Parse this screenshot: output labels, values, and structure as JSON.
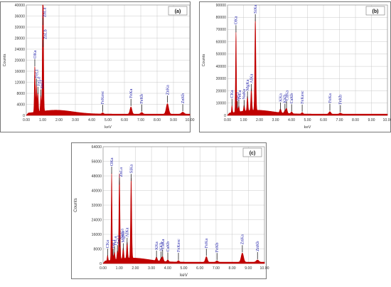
{
  "figure": {
    "colors": {
      "spectrum": "#c00000",
      "label_text": "#1c1ca8",
      "grid": "#c8c8c8",
      "frame": "#555555",
      "background": "#ffffff"
    }
  },
  "chart_data": [
    {
      "type": "area",
      "panel_label": "(a)",
      "xlabel": "keV",
      "ylabel": "Counts",
      "xlim": [
        0,
        10
      ],
      "ylim": [
        0,
        40000
      ],
      "x_ticks": [
        "0.00",
        "1.00",
        "2.00",
        "3.00",
        "4.00",
        "5.00",
        "6.00",
        "7.00",
        "8.00",
        "9.00",
        "10.00"
      ],
      "y_ticks": [
        "0",
        "4000",
        "8000",
        "12000",
        "16000",
        "20000",
        "24000",
        "28000",
        "32000",
        "36000",
        "40000"
      ],
      "grid": true,
      "peaks": [
        {
          "label": "FeLl",
          "x": 0.62,
          "y": 10000
        },
        {
          "label": "FeLa",
          "x": 0.71,
          "y": 7000
        },
        {
          "label": "OKa",
          "x": 0.52,
          "y": 17000
        },
        {
          "label": "ZnLl",
          "x": 0.89,
          "y": 6000
        },
        {
          "label": "ZnLa",
          "x": 1.01,
          "y": 32000
        },
        {
          "label": "ZnLb",
          "x": 1.03,
          "y": 24000
        },
        {
          "label": "FeKesc",
          "x": 4.67,
          "y": 450
        },
        {
          "label": "FeKa",
          "x": 6.4,
          "y": 2600
        },
        {
          "label": "FeKb",
          "x": 7.06,
          "y": 600
        },
        {
          "label": "ZnKa",
          "x": 8.63,
          "y": 3800
        },
        {
          "label": "ZnKb",
          "x": 9.57,
          "y": 700
        }
      ]
    },
    {
      "type": "area",
      "panel_label": "(b)",
      "xlabel": "keV",
      "ylabel": "Counts",
      "xlim": [
        0,
        10
      ],
      "ylim": [
        0,
        90000
      ],
      "x_ticks": [
        "0.00",
        "1.00",
        "2.00",
        "3.00",
        "4.00",
        "5.00",
        "6.00",
        "7.00",
        "8.00",
        "9.00",
        "10.00"
      ],
      "y_ticks": [
        "0",
        "10000",
        "20000",
        "30000",
        "40000",
        "50000",
        "60000",
        "70000",
        "80000",
        "90000"
      ],
      "grid": true,
      "peaks": [
        {
          "label": "CKa",
          "x": 0.28,
          "y": 6000
        },
        {
          "label": "OKa",
          "x": 0.53,
          "y": 66000
        },
        {
          "label": "FeLl",
          "x": 0.62,
          "y": 4000
        },
        {
          "label": "FeLa",
          "x": 0.71,
          "y": 5000
        },
        {
          "label": "NaKa",
          "x": 1.04,
          "y": 5000
        },
        {
          "label": "MgKa",
          "x": 1.25,
          "y": 12000
        },
        {
          "label": "AlKa",
          "x": 1.49,
          "y": 18000
        },
        {
          "label": "SiKa",
          "x": 1.74,
          "y": 75000
        },
        {
          "label": "KKa",
          "x": 3.31,
          "y": 3000
        },
        {
          "label": "KKb",
          "x": 3.59,
          "y": 2000
        },
        {
          "label": "CaKa",
          "x": 3.69,
          "y": 4000
        },
        {
          "label": "CaKb",
          "x": 4.01,
          "y": 1500
        },
        {
          "label": "FeKesc",
          "x": 4.67,
          "y": 1200
        },
        {
          "label": "FeKa",
          "x": 6.4,
          "y": 2000
        },
        {
          "label": "FeKb",
          "x": 7.06,
          "y": 800
        }
      ]
    },
    {
      "type": "area",
      "panel_label": "(c)",
      "xlabel": "keV",
      "ylabel": "Counts",
      "xlim": [
        0,
        10
      ],
      "ylim": [
        0,
        64000
      ],
      "x_ticks": [
        "0.00",
        "1.00",
        "2.00",
        "3.00",
        "4.00",
        "5.00",
        "6.00",
        "7.00",
        "8.00",
        "9.00",
        "10.00"
      ],
      "y_ticks": [
        "0",
        "8000",
        "16000",
        "24000",
        "32000",
        "40000",
        "48000",
        "56000",
        "64000"
      ],
      "grid": true,
      "peaks": [
        {
          "label": "CKa",
          "x": 0.28,
          "y": 3000
        },
        {
          "label": "OKa",
          "x": 0.53,
          "y": 48000
        },
        {
          "label": "FeLl",
          "x": 0.62,
          "y": 3000
        },
        {
          "label": "FeLa",
          "x": 0.71,
          "y": 4500
        },
        {
          "label": "ZnLl",
          "x": 0.89,
          "y": 5000
        },
        {
          "label": "ZnLa",
          "x": 1.01,
          "y": 42000
        },
        {
          "label": "NaKa",
          "x": 1.04,
          "y": 8000
        },
        {
          "label": "MgKa",
          "x": 1.25,
          "y": 6000
        },
        {
          "label": "AlKa",
          "x": 1.49,
          "y": 9000
        },
        {
          "label": "SiKa",
          "x": 1.74,
          "y": 44000
        },
        {
          "label": "KKa",
          "x": 3.31,
          "y": 2000
        },
        {
          "label": "KKb",
          "x": 3.59,
          "y": 1500
        },
        {
          "label": "CaKa",
          "x": 3.69,
          "y": 2500
        },
        {
          "label": "CaKb",
          "x": 4.01,
          "y": 1000
        },
        {
          "label": "FeKesc",
          "x": 4.67,
          "y": 800
        },
        {
          "label": "FeKa",
          "x": 6.4,
          "y": 3000
        },
        {
          "label": "FeKb",
          "x": 7.06,
          "y": 700
        },
        {
          "label": "ZnKa",
          "x": 8.63,
          "y": 5000
        },
        {
          "label": "ZnKb",
          "x": 9.57,
          "y": 1200
        }
      ]
    }
  ]
}
